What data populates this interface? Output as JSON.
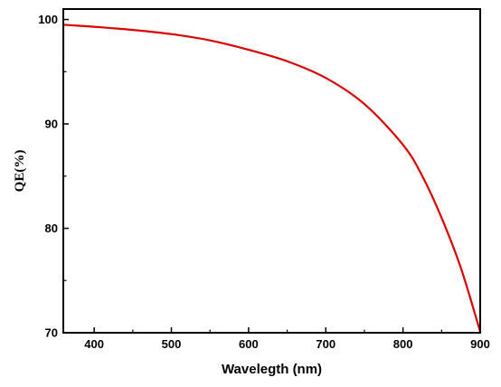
{
  "chart_data": {
    "type": "line",
    "xlabel": "Wavelegth (nm)",
    "ylabel": "QE(%)",
    "xlim": [
      360,
      900
    ],
    "ylim": [
      70,
      101
    ],
    "x_ticks": [
      400,
      500,
      600,
      700,
      800,
      900
    ],
    "y_ticks": [
      70,
      80,
      90,
      100
    ],
    "grid": false,
    "series": [
      {
        "color": "#dd0000",
        "x": [
          360,
          380,
          400,
          450,
          500,
          550,
          600,
          650,
          700,
          750,
          800,
          825,
          850,
          875,
          900
        ],
        "y": [
          99.5,
          99.4,
          99.3,
          99.0,
          98.6,
          98.0,
          97.1,
          96.0,
          94.4,
          91.9,
          88.0,
          85.0,
          81.0,
          76.2,
          70.1
        ]
      }
    ]
  }
}
